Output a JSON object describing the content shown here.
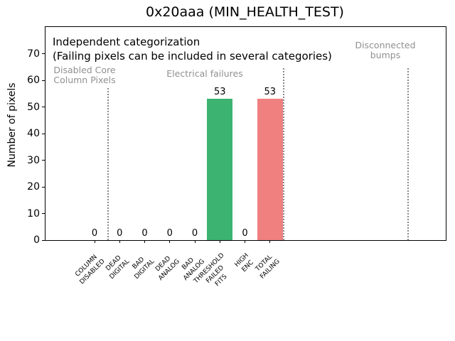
{
  "chart_data": {
    "type": "bar",
    "title": "0x20aaa (MIN_HEALTH_TEST)",
    "xlabel": "",
    "ylabel": "Number of pixels",
    "categories": [
      [
        "COLUMN",
        "DISABLED"
      ],
      [
        "DEAD",
        "DIGITAL"
      ],
      [
        "BAD",
        "DIGITAL"
      ],
      [
        "DEAD",
        "ANALOG"
      ],
      [
        "BAD",
        "ANALOG"
      ],
      [
        "THRESHOLD",
        "FAILED",
        "FITS"
      ],
      [
        "HIGH",
        "ENC"
      ],
      [
        "TOTAL",
        "FAILING"
      ]
    ],
    "values": [
      0,
      0,
      0,
      0,
      0,
      53,
      0,
      53
    ],
    "bar_colors": [
      null,
      null,
      null,
      null,
      null,
      "#3cb371",
      null,
      "#f08080"
    ],
    "value_labels": [
      "0",
      "0",
      "0",
      "0",
      "0",
      "53",
      "0",
      "53"
    ],
    "yticks": [
      0,
      10,
      20,
      30,
      40,
      50,
      60,
      70
    ],
    "ylim": [
      0,
      80
    ],
    "grid": false,
    "legend": null,
    "annotations": {
      "note_line1": "Independent categorization",
      "note_line2": "(Failing pixels can be included in several categories)",
      "sections": [
        {
          "lines": [
            "Disabled Core",
            "Column Pixels"
          ]
        },
        {
          "lines": [
            "Electrical failures"
          ]
        },
        {
          "lines": [
            "Disconnected",
            "bumps"
          ]
        }
      ]
    },
    "colors": {
      "threshold_failed_bar": "#3cb371",
      "total_failing_bar": "#f08080",
      "section_label_gray": "#909090",
      "divider_gray": "#8a8a8a",
      "axes_and_text": "#000000",
      "background": "#ffffff"
    }
  }
}
